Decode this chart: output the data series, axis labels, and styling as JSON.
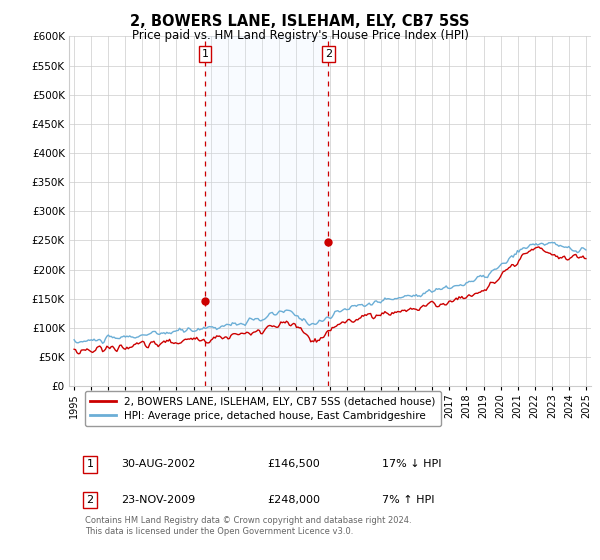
{
  "title": "2, BOWERS LANE, ISLEHAM, ELY, CB7 5SS",
  "subtitle": "Price paid vs. HM Land Registry's House Price Index (HPI)",
  "legend_line1": "2, BOWERS LANE, ISLEHAM, ELY, CB7 5SS (detached house)",
  "legend_line2": "HPI: Average price, detached house, East Cambridgeshire",
  "transaction1_label": "1",
  "transaction1_date": "30-AUG-2002",
  "transaction1_price": "£146,500",
  "transaction1_hpi": "17% ↓ HPI",
  "transaction2_label": "2",
  "transaction2_date": "23-NOV-2009",
  "transaction2_price": "£248,000",
  "transaction2_hpi": "7% ↑ HPI",
  "footer": "Contains HM Land Registry data © Crown copyright and database right 2024.\nThis data is licensed under the Open Government Licence v3.0.",
  "hpi_color": "#6baed6",
  "price_color": "#cc0000",
  "marker_color": "#cc0000",
  "shade_color": "#ddeeff",
  "dashed_line_color": "#cc0000",
  "ylim_min": 0,
  "ylim_max": 600000,
  "yticks": [
    0,
    50000,
    100000,
    150000,
    200000,
    250000,
    300000,
    350000,
    400000,
    450000,
    500000,
    550000,
    600000
  ],
  "transaction1_x": 2002.67,
  "transaction2_x": 2009.9,
  "transaction1_y": 146500,
  "transaction2_y": 248000,
  "xmin": 1994.7,
  "xmax": 2025.3
}
